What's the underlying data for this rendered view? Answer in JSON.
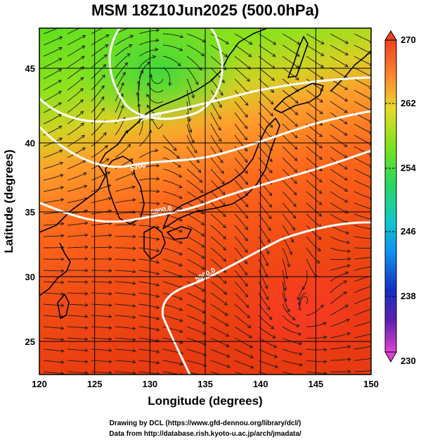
{
  "title": "MSM 18Z10Jun2025 (500.0hPa)",
  "xlabel": "Longitude (degrees)",
  "ylabel": "Latitude  (degrees)",
  "x_ticks": [
    "120",
    "125",
    "130",
    "135",
    "140",
    "145",
    "150"
  ],
  "y_ticks": [
    "25",
    "30",
    "35",
    "40",
    "45"
  ],
  "colorbar": {
    "ticks": [
      "270",
      "262",
      "254",
      "246",
      "238",
      "230"
    ],
    "min": 230,
    "max": 270
  },
  "contours": [
    {
      "label": "5600.0"
    },
    {
      "label": "5700"
    },
    {
      "label": "5800.0"
    },
    {
      "label": "5900.0"
    }
  ],
  "credits": {
    "line1": "Drawing by DCL (https://www.gfd-dennou.org/library/dcl/)",
    "line2": "Data from http://database.rish.kyoto-u.ac.jp/arch/jmadata/"
  },
  "colors": {
    "warm": "#e83a10",
    "mid": "#ff9a30",
    "cool": "#4cdc20",
    "contour": "#ffffff"
  }
}
